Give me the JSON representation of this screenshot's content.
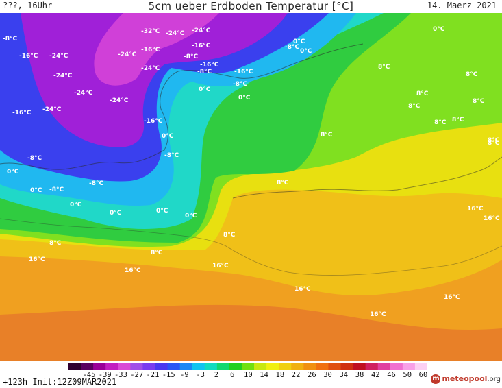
{
  "header": {
    "left": "???, 16Uhr",
    "title": "5cm ueber Erdboden Temperatur [°C]",
    "date": "14. Maerz 2021"
  },
  "map": {
    "labels": [
      "-8°C",
      "-16°C",
      "-24°C",
      "-24°C",
      "-16°C",
      "-24°C",
      "-8°C",
      "-8°C",
      "-8°C",
      "-32°C",
      "-24°C",
      "-24°C",
      "-24°C",
      "-16°C",
      "-16°C",
      "-24°C",
      "-16°C",
      "-16°C",
      "-24°C",
      "-24°C",
      "-16°C",
      "-8°C",
      "-8°C",
      "-8°C",
      "-8°C",
      "0°C",
      "0°C",
      "0°C",
      "0°C",
      "0°C",
      "0°C",
      "0°C",
      "0°C",
      "0°C",
      "0°C",
      "0°C",
      "0°C",
      "-8°C",
      "8°C",
      "8°C",
      "8°C",
      "8°C",
      "8°C",
      "8°C",
      "8°C",
      "8°C",
      "8°C",
      "8°C",
      "8°C",
      "8°C",
      "8°C",
      "8°C",
      "16°C",
      "16°C",
      "16°C",
      "16°C",
      "16°C",
      "16°C",
      "16°C",
      "16°C"
    ]
  },
  "legend": {
    "ticks": [
      "-45",
      "-39",
      "-33",
      "-27",
      "-21",
      "-15",
      "-9",
      "-3",
      "2",
      "6",
      "10",
      "14",
      "18",
      "22",
      "26",
      "30",
      "34",
      "38",
      "42",
      "46",
      "50",
      "60"
    ],
    "colors": [
      "#300030",
      "#5a0060",
      "#9a0098",
      "#c21fc0",
      "#d94bd6",
      "#a050e8",
      "#7a3cf0",
      "#4a38f0",
      "#2a56f5",
      "#1a88f5",
      "#10c4f0",
      "#10dcc0",
      "#10d870",
      "#20d020",
      "#70e010",
      "#c8e810",
      "#f0f010",
      "#f0d010",
      "#f0b010",
      "#f09010",
      "#f07010",
      "#e05010",
      "#d03010",
      "#c01020",
      "#d02060",
      "#e040a0",
      "#f070d0",
      "#f8a0e8",
      "#fcd0f4"
    ]
  },
  "footer": {
    "init": "+123h Init:12Z09MAR2021",
    "logo_a": "meteopool",
    "logo_b": ".org"
  },
  "colors": {
    "deep_cold": "#a020d8",
    "cold": "#3a40ee",
    "cool": "#20b8f0",
    "cyan": "#20d8c8",
    "green": "#30cc40",
    "light_green": "#80e020",
    "yellow": "#e8e010",
    "gold": "#f0c018",
    "orange": "#f0a020",
    "warm_orange": "#e88028"
  }
}
